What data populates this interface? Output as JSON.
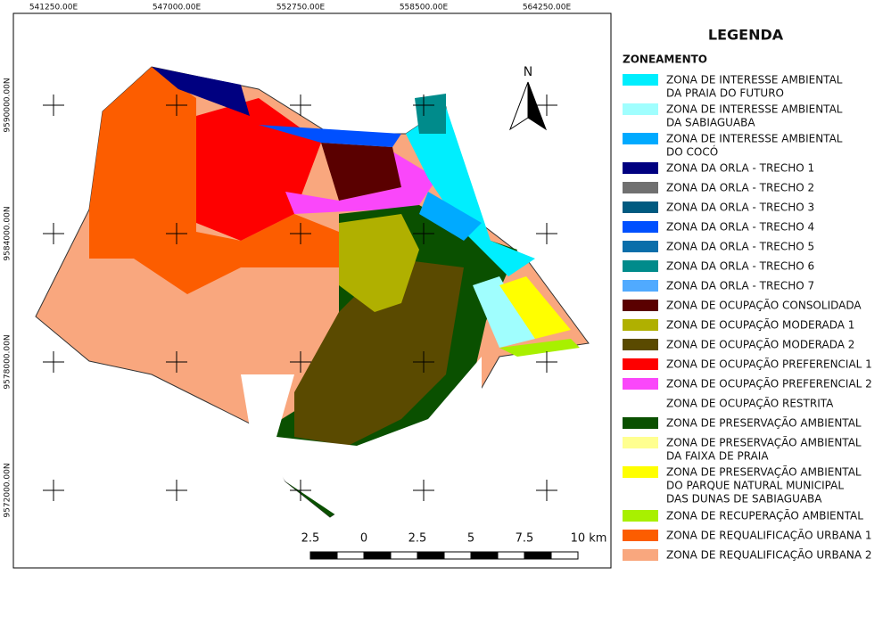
{
  "map": {
    "top_coordinates": [
      "541250.00E",
      "547000.00E",
      "552750.00E",
      "558500.00E",
      "564250.00E"
    ],
    "left_coordinates": [
      "9590000.00N",
      "9584000.00N",
      "9578000.00N",
      "9572000.00N"
    ],
    "north": "N",
    "scale_labels": [
      "2.5",
      "0",
      "2.5",
      "5",
      "7.5",
      "10 km"
    ]
  },
  "legend": {
    "title": "LEGENDA",
    "subtitle": "ZONEAMENTO",
    "items": [
      {
        "color": "#00eefe",
        "lines": [
          "ZONA DE INTERESSE AMBIENTAL",
          "DA PRAIA DO FUTURO"
        ]
      },
      {
        "color": "#a0fefe",
        "lines": [
          "ZONA DE INTERESSE AMBIENTAL",
          "DA SABIAGUABA"
        ]
      },
      {
        "color": "#00aaff",
        "lines": [
          "ZONA DE INTERESSE AMBIENTAL",
          "DO COCÓ"
        ]
      },
      {
        "color": "#000080",
        "lines": [
          "ZONA DA ORLA - TRECHO 1"
        ]
      },
      {
        "color": "#707070",
        "lines": [
          "ZONA DA ORLA - TRECHO 2"
        ]
      },
      {
        "color": "#005a80",
        "lines": [
          "ZONA DA ORLA - TRECHO 3"
        ]
      },
      {
        "color": "#0050ff",
        "lines": [
          "ZONA DA ORLA - TRECHO 4"
        ]
      },
      {
        "color": "#0a6eaa",
        "lines": [
          "ZONA DA ORLA - TRECHO 5"
        ]
      },
      {
        "color": "#008b8b",
        "lines": [
          "ZONA DA ORLA - TRECHO 6"
        ]
      },
      {
        "color": "#50aaff",
        "lines": [
          "ZONA DA ORLA - TRECHO 7"
        ]
      },
      {
        "color": "#5a0000",
        "lines": [
          "ZONA DE OCUPAÇÃO CONSOLIDADA"
        ]
      },
      {
        "color": "#b0b000",
        "lines": [
          "ZONA DE OCUPAÇÃO MODERADA 1"
        ]
      },
      {
        "color": "#5a4a00",
        "lines": [
          "ZONA DE OCUPAÇÃO MODERADA 2"
        ]
      },
      {
        "color": "#fe0000",
        "lines": [
          "ZONA DE OCUPAÇÃO PREFERENCIAL 1"
        ]
      },
      {
        "color": "#fa47fa",
        "lines": [
          "ZONA DE OCUPAÇÃO PREFERENCIAL 2"
        ]
      },
      {
        "color": "#ffffff",
        "lines": [
          "ZONA DE OCUPAÇÃO RESTRITA"
        ]
      },
      {
        "color": "#0a5000",
        "lines": [
          "ZONA DE PRESERVAÇÃO AMBIENTAL"
        ]
      },
      {
        "color": "#ffff90",
        "lines": [
          "ZONA DE PRESERVAÇÃO AMBIENTAL",
          "DA FAIXA DE PRAIA"
        ]
      },
      {
        "color": "#ffff00",
        "lines": [
          "ZONA DE PRESERVAÇÃO AMBIENTAL",
          "DO PARQUE NATURAL MUNICIPAL",
          "DAS DUNAS DE SABIAGUABA"
        ]
      },
      {
        "color": "#a8f000",
        "lines": [
          "ZONA DE RECUPERAÇÃO AMBIENTAL"
        ]
      },
      {
        "color": "#fc5d00",
        "lines": [
          "ZONA DE REQUALIFICAÇÃO URBANA 1"
        ]
      },
      {
        "color": "#f9a77e",
        "lines": [
          "ZONA DE REQUALIFICAÇÃO URBANA 2"
        ]
      }
    ]
  }
}
